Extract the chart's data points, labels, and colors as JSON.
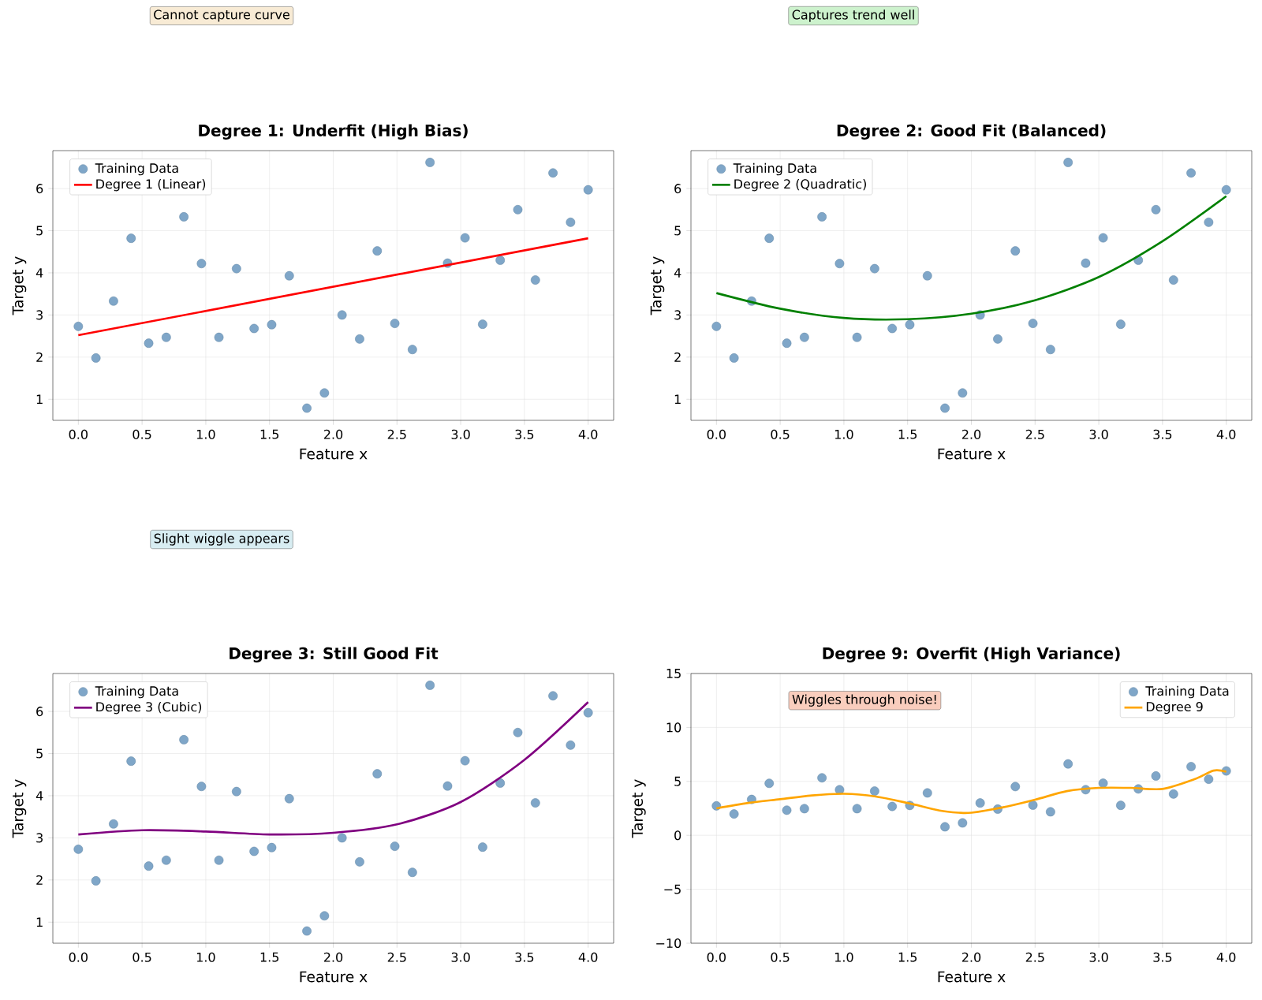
{
  "chart_data": [
    {
      "type": "scatter",
      "title": "Degree 1: Underfit (High Bias)",
      "xlabel": "Feature x",
      "ylabel": "Target y",
      "xlim": [
        -0.2,
        4.2
      ],
      "ylim": [
        0.5,
        6.9
      ],
      "xticks": [
        {
          "value": 0,
          "label": "0.0"
        },
        0.5,
        {
          "value": 1,
          "label": "1.0"
        },
        1.5,
        {
          "value": 2,
          "label": "2.0"
        },
        2.5,
        {
          "value": 3,
          "label": "3.0"
        },
        3.5,
        {
          "value": 4,
          "label": "4.0"
        }
      ],
      "yticks": [
        1,
        2,
        3,
        4,
        5,
        6
      ],
      "grid": true,
      "legend": "top left",
      "annotations": [
        "Cannot capture curve"
      ],
      "series": [
        {
          "name": "Training Data",
          "color": "#7fa6c8",
          "x": [
            0,
            0.138,
            0.276,
            0.414,
            0.552,
            0.69,
            0.828,
            0.966,
            1.103,
            1.241,
            1.379,
            1.517,
            1.655,
            1.793,
            1.931,
            2.069,
            2.207,
            2.345,
            2.483,
            2.621,
            2.759,
            2.897,
            3.034,
            3.172,
            3.31,
            3.448,
            3.586,
            3.724,
            3.862,
            4.0
          ],
          "values": [
            2.73,
            1.98,
            3.33,
            4.82,
            2.33,
            2.47,
            5.33,
            4.22,
            2.47,
            4.1,
            2.68,
            2.77,
            3.93,
            0.79,
            1.15,
            3.0,
            2.43,
            4.52,
            2.8,
            2.18,
            6.62,
            4.23,
            4.83,
            2.78,
            4.3,
            5.5,
            3.83,
            6.37,
            5.2,
            5.97
          ]
        },
        {
          "name": "Degree 1 (Linear)",
          "type": "line",
          "color": "#ff0000",
          "x": [
            0,
            4
          ],
          "values": [
            2.52,
            4.82
          ]
        }
      ]
    },
    {
      "type": "scatter",
      "title": "Degree 2: Good Fit (Balanced)",
      "xlabel": "Feature x",
      "ylabel": "Target y",
      "xlim": [
        -0.2,
        4.2
      ],
      "ylim": [
        0.5,
        6.9
      ],
      "xticks": [
        {
          "value": 0,
          "label": "0.0"
        },
        0.5,
        {
          "value": 1,
          "label": "1.0"
        },
        1.5,
        {
          "value": 2,
          "label": "2.0"
        },
        2.5,
        {
          "value": 3,
          "label": "3.0"
        },
        3.5,
        {
          "value": 4,
          "label": "4.0"
        }
      ],
      "yticks": [
        1,
        2,
        3,
        4,
        5,
        6
      ],
      "grid": true,
      "legend": "top left",
      "annotations": [
        "Captures trend well"
      ],
      "series": [
        {
          "name": "Training Data",
          "color": "#7fa6c8",
          "x": [
            0,
            0.138,
            0.276,
            0.414,
            0.552,
            0.69,
            0.828,
            0.966,
            1.103,
            1.241,
            1.379,
            1.517,
            1.655,
            1.793,
            1.931,
            2.069,
            2.207,
            2.345,
            2.483,
            2.621,
            2.759,
            2.897,
            3.034,
            3.172,
            3.31,
            3.448,
            3.586,
            3.724,
            3.862,
            4.0
          ],
          "values": [
            2.73,
            1.98,
            3.33,
            4.82,
            2.33,
            2.47,
            5.33,
            4.22,
            2.47,
            4.1,
            2.68,
            2.77,
            3.93,
            0.79,
            1.15,
            3.0,
            2.43,
            4.52,
            2.8,
            2.18,
            6.62,
            4.23,
            4.83,
            2.78,
            4.3,
            5.5,
            3.83,
            6.37,
            5.2,
            5.97
          ]
        },
        {
          "name": "Degree 2 (Quadratic)",
          "type": "line",
          "color": "#008000",
          "x": [
            0,
            0.5,
            1.0,
            1.5,
            2.0,
            2.5,
            3.0,
            3.5,
            4.0
          ],
          "values": [
            3.52,
            3.15,
            2.93,
            2.9,
            3.03,
            3.35,
            3.9,
            4.75,
            5.82
          ]
        }
      ]
    },
    {
      "type": "scatter",
      "title": "Degree 3: Still Good Fit",
      "xlabel": "Feature x",
      "ylabel": "Target y",
      "xlim": [
        -0.2,
        4.2
      ],
      "ylim": [
        0.5,
        6.9
      ],
      "xticks": [
        {
          "value": 0,
          "label": "0.0"
        },
        0.5,
        {
          "value": 1,
          "label": "1.0"
        },
        1.5,
        {
          "value": 2,
          "label": "2.0"
        },
        2.5,
        {
          "value": 3,
          "label": "3.0"
        },
        3.5,
        {
          "value": 4,
          "label": "4.0"
        }
      ],
      "yticks": [
        1,
        2,
        3,
        4,
        5,
        6
      ],
      "grid": true,
      "legend": "top left",
      "annotations": [
        "Slight wiggle appears"
      ],
      "series": [
        {
          "name": "Training Data",
          "color": "#7fa6c8",
          "x": [
            0,
            0.138,
            0.276,
            0.414,
            0.552,
            0.69,
            0.828,
            0.966,
            1.103,
            1.241,
            1.379,
            1.517,
            1.655,
            1.793,
            1.931,
            2.069,
            2.207,
            2.345,
            2.483,
            2.621,
            2.759,
            2.897,
            3.034,
            3.172,
            3.31,
            3.448,
            3.586,
            3.724,
            3.862,
            4.0
          ],
          "values": [
            2.73,
            1.98,
            3.33,
            4.82,
            2.33,
            2.47,
            5.33,
            4.22,
            2.47,
            4.1,
            2.68,
            2.77,
            3.93,
            0.79,
            1.15,
            3.0,
            2.43,
            4.52,
            2.8,
            2.18,
            6.62,
            4.23,
            4.83,
            2.78,
            4.3,
            5.5,
            3.83,
            6.37,
            5.2,
            5.97
          ]
        },
        {
          "name": "Degree 3 (Cubic)",
          "type": "line",
          "color": "#800080",
          "x": [
            0,
            0.5,
            1.0,
            1.5,
            2.0,
            2.5,
            3.0,
            3.5,
            4.0
          ],
          "values": [
            3.08,
            3.18,
            3.15,
            3.08,
            3.12,
            3.32,
            3.85,
            4.85,
            6.22
          ]
        }
      ]
    },
    {
      "type": "scatter",
      "title": "Degree 9: Overfit (High Variance)",
      "xlabel": "Feature x",
      "ylabel": "Target y",
      "xlim": [
        -0.2,
        4.2
      ],
      "ylim": [
        -10,
        15
      ],
      "xticks": [
        {
          "value": 0,
          "label": "0.0"
        },
        0.5,
        {
          "value": 1,
          "label": "1.0"
        },
        1.5,
        {
          "value": 2,
          "label": "2.0"
        },
        2.5,
        {
          "value": 3,
          "label": "3.0"
        },
        3.5,
        {
          "value": 4,
          "label": "4.0"
        }
      ],
      "yticks": [
        {
          "value": -10,
          "label": "−10"
        },
        {
          "value": -5,
          "label": "−5"
        },
        0,
        5,
        10,
        15
      ],
      "grid": true,
      "legend": "top right",
      "annotations": [
        "Wiggles through noise!"
      ],
      "series": [
        {
          "name": "Training Data",
          "color": "#7fa6c8",
          "x": [
            0,
            0.138,
            0.276,
            0.414,
            0.552,
            0.69,
            0.828,
            0.966,
            1.103,
            1.241,
            1.379,
            1.517,
            1.655,
            1.793,
            1.931,
            2.069,
            2.207,
            2.345,
            2.483,
            2.621,
            2.759,
            2.897,
            3.034,
            3.172,
            3.31,
            3.448,
            3.586,
            3.724,
            3.862,
            4.0
          ],
          "values": [
            2.73,
            1.98,
            3.33,
            4.82,
            2.33,
            2.47,
            5.33,
            4.22,
            2.47,
            4.1,
            2.68,
            2.77,
            3.93,
            0.79,
            1.15,
            3.0,
            2.43,
            4.52,
            2.8,
            2.18,
            6.62,
            4.23,
            4.83,
            2.78,
            4.3,
            5.5,
            3.83,
            6.37,
            5.2,
            5.97
          ]
        },
        {
          "name": "Degree 9",
          "type": "line",
          "color": "#ffa500",
          "x": [
            0,
            0.25,
            0.5,
            0.75,
            1.0,
            1.25,
            1.5,
            1.75,
            1.9,
            2.0,
            2.25,
            2.5,
            2.75,
            3.0,
            3.25,
            3.5,
            3.75,
            3.9,
            4.0
          ],
          "values": [
            2.5,
            3.0,
            3.35,
            3.7,
            3.85,
            3.6,
            3.0,
            2.3,
            2.1,
            2.1,
            2.6,
            3.3,
            4.1,
            4.4,
            4.4,
            4.3,
            5.2,
            6.0,
            5.9
          ]
        }
      ]
    }
  ]
}
